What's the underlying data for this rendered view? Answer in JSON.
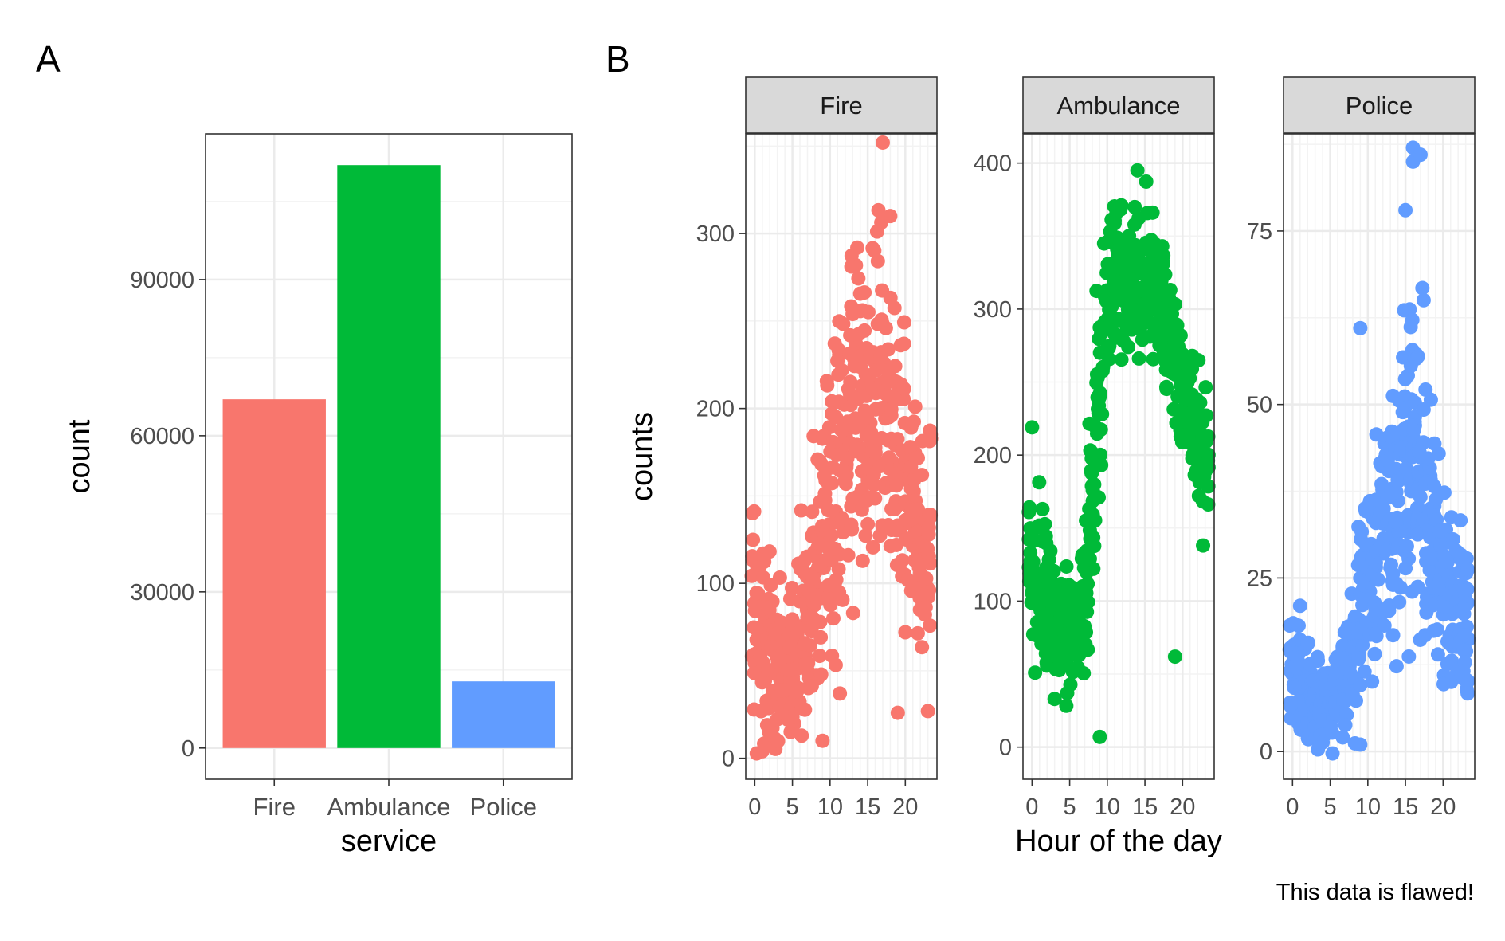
{
  "panel_a_tag": "A",
  "panel_b_tag": "B",
  "caption": "This data is flawed!",
  "chart_data": [
    {
      "type": "bar",
      "panel": "A",
      "xlabel": "service",
      "ylabel": "count",
      "categories": [
        "Fire",
        "Ambulance",
        "Police"
      ],
      "values": [
        67000,
        112000,
        12800
      ],
      "colors": [
        "#F8766D",
        "#00BA38",
        "#619CFF"
      ],
      "ylim": [
        -6000,
        118000
      ],
      "yticks": [
        0,
        30000,
        60000,
        90000
      ],
      "ytick_labels": [
        "0",
        "30000",
        "60000",
        "90000"
      ],
      "grid": true
    },
    {
      "type": "scatter",
      "panel": "B",
      "xlabel": "Hour of the day",
      "ylabel": "counts",
      "xlim": [
        -1.2,
        24.2
      ],
      "xticks": [
        0,
        5,
        10,
        15,
        20
      ],
      "xtick_labels": [
        "0",
        "5",
        "10",
        "15",
        "20"
      ],
      "grid": true,
      "facets": [
        {
          "name": "Fire",
          "color": "#F8766D",
          "ylim": [
            -12,
            357
          ],
          "yticks": [
            0,
            100,
            200,
            300
          ],
          "ytick_labels": [
            "0",
            "100",
            "200",
            "300"
          ],
          "hour_mean": [
            78,
            62,
            60,
            52,
            55,
            58,
            64,
            78,
            105,
            128,
            140,
            150,
            165,
            185,
            198,
            210,
            220,
            205,
            178,
            160,
            150,
            140,
            132,
            120
          ],
          "hour_spread": [
            38,
            35,
            35,
            30,
            30,
            30,
            32,
            40,
            45,
            50,
            50,
            55,
            55,
            60,
            60,
            65,
            65,
            60,
            55,
            50,
            48,
            45,
            42,
            40
          ],
          "extremes": [
            {
              "x": 17,
              "y": 352
            },
            {
              "x": 1,
              "y": 4
            },
            {
              "x": 9,
              "y": 10
            },
            {
              "x": 19,
              "y": 26
            },
            {
              "x": 23,
              "y": 27
            },
            {
              "x": 13,
              "y": 254
            },
            {
              "x": 18,
              "y": 310
            }
          ]
        },
        {
          "name": "Ambulance",
          "color": "#00BA38",
          "ylim": [
            -22,
            420
          ],
          "yticks": [
            0,
            100,
            200,
            300,
            400
          ],
          "ytick_labels": [
            "0",
            "100",
            "200",
            "300",
            "400"
          ],
          "hour_mean": [
            125,
            115,
            100,
            92,
            85,
            80,
            82,
            108,
            170,
            245,
            300,
            318,
            322,
            318,
            320,
            315,
            308,
            300,
            288,
            270,
            245,
            225,
            210,
            195
          ],
          "hour_spread": [
            35,
            32,
            30,
            25,
            25,
            25,
            25,
            35,
            35,
            35,
            35,
            35,
            35,
            35,
            35,
            35,
            35,
            35,
            32,
            30,
            30,
            28,
            25,
            25
          ],
          "extremes": [
            {
              "x": 14,
              "y": 395
            },
            {
              "x": 9,
              "y": 7
            },
            {
              "x": 19,
              "y": 62
            },
            {
              "x": 3,
              "y": 33
            },
            {
              "x": 0,
              "y": 219
            }
          ]
        },
        {
          "name": "Police",
          "color": "#619CFF",
          "ylim": [
            -4,
            89
          ],
          "yticks": [
            0,
            25,
            50,
            75
          ],
          "ytick_labels": [
            "0",
            "25",
            "50",
            "75"
          ],
          "hour_mean": [
            12,
            10,
            9,
            8,
            7,
            7,
            8,
            10,
            14,
            19,
            24,
            28,
            31,
            33,
            36,
            42,
            45,
            40,
            33,
            28,
            24,
            21,
            19,
            17
          ],
          "hour_spread": [
            6,
            6,
            5,
            5,
            4,
            4,
            4,
            5,
            7,
            8,
            9,
            10,
            10,
            11,
            12,
            14,
            15,
            13,
            11,
            10,
            9,
            8,
            8,
            7
          ],
          "extremes": [
            {
              "x": 16,
              "y": 87
            },
            {
              "x": 16,
              "y": 85
            },
            {
              "x": 17,
              "y": 86
            },
            {
              "x": 15,
              "y": 78
            },
            {
              "x": 9,
              "y": 61
            },
            {
              "x": 9,
              "y": 1
            }
          ]
        }
      ]
    }
  ]
}
